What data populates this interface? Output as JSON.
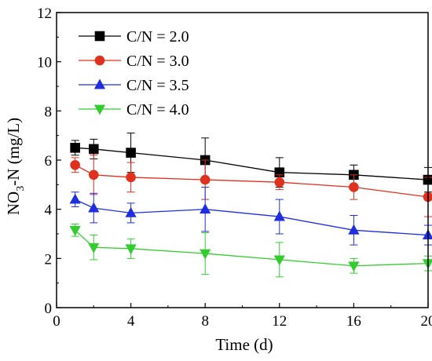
{
  "chart_data": {
    "type": "line",
    "xlabel": "Time (d)",
    "ylabel_main": "NO",
    "ylabel_sub": "3",
    "ylabel_rest": "-N (mg/L)",
    "xlim": [
      0,
      20
    ],
    "ylim": [
      0,
      12
    ],
    "x_ticks": [
      0,
      4,
      8,
      12,
      16,
      20
    ],
    "y_ticks": [
      0,
      2,
      4,
      6,
      8,
      10,
      12
    ],
    "grid": false,
    "legend_placement": "top-left",
    "x": [
      1,
      2,
      4,
      8,
      12,
      16,
      20
    ],
    "series": [
      {
        "name": "C/N = 2.0",
        "color": "#000000",
        "marker": "square",
        "values": [
          6.5,
          6.45,
          6.3,
          6.0,
          5.5,
          5.4,
          5.2
        ],
        "errors": [
          0.3,
          0.4,
          0.8,
          0.9,
          0.6,
          0.4,
          0.5
        ]
      },
      {
        "name": "C/N = 3.0",
        "color": "#e0301e",
        "marker": "circle",
        "values": [
          5.8,
          5.4,
          5.3,
          5.2,
          5.1,
          4.9,
          4.5
        ],
        "errors": [
          0.3,
          0.8,
          0.6,
          0.8,
          0.3,
          0.5,
          0.8
        ]
      },
      {
        "name": "C/N = 3.5",
        "color": "#1f2fe0",
        "marker": "triangle-up",
        "values": [
          4.4,
          4.05,
          3.85,
          4.0,
          3.7,
          3.15,
          2.95
        ],
        "errors": [
          0.3,
          0.6,
          0.4,
          0.9,
          0.7,
          0.6,
          0.4
        ]
      },
      {
        "name": "C/N = 4.0",
        "color": "#33cc2f",
        "marker": "triangle-down",
        "values": [
          3.15,
          2.45,
          2.4,
          2.2,
          1.95,
          1.7,
          1.8
        ],
        "errors": [
          0.25,
          0.5,
          0.4,
          0.85,
          0.7,
          0.3,
          0.3
        ]
      }
    ]
  }
}
